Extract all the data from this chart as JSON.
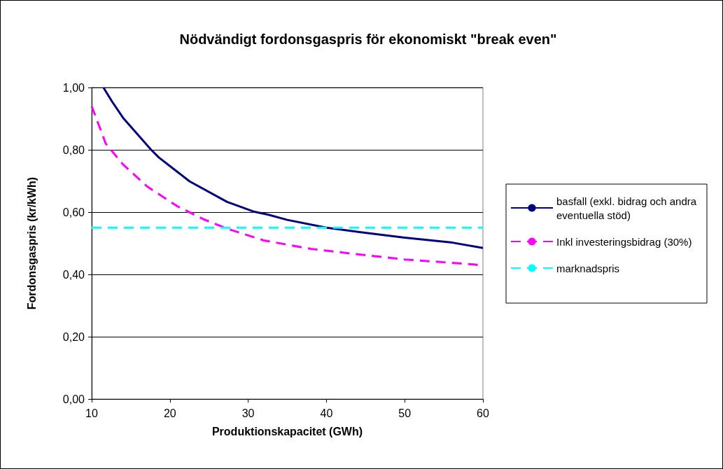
{
  "chart_data": {
    "type": "line",
    "title": "Nödvändigt fordonsgaspris för ekonomiskt \"break even\"",
    "xlabel": "Produktionskapacitet (GWh)",
    "ylabel": "Fordonsgaspris (kr/kWh)",
    "xlim": [
      10,
      60
    ],
    "xticks": [
      10,
      20,
      30,
      40,
      50,
      60
    ],
    "ylim": [
      0,
      1
    ],
    "yticks": [
      {
        "value": 0,
        "label": "0,00"
      },
      {
        "value": 0.2,
        "label": "0,20"
      },
      {
        "value": 0.4,
        "label": "0,40"
      },
      {
        "value": 0.6,
        "label": "0,60"
      },
      {
        "value": 0.8,
        "label": "0,80"
      },
      {
        "value": 1,
        "label": "1,00"
      }
    ],
    "grid": "y",
    "legend": "right",
    "marker": "none",
    "series": [
      {
        "name": "basfall (exkl. bidrag och andra eventuella stöd)",
        "color": "#000080",
        "line_style": "solid",
        "x": [
          11.5,
          12.6,
          14,
          17.6,
          18.6,
          22.5,
          27.3,
          30.8,
          32.5,
          35,
          40,
          44.2,
          50,
          56.1,
          60
        ],
        "values": [
          1.0,
          0.955,
          0.903,
          0.8,
          0.775,
          0.699,
          0.633,
          0.601,
          0.592,
          0.575,
          0.55,
          0.536,
          0.518,
          0.502,
          0.485
        ]
      },
      {
        "name": "Inkl investeringsbidrag (30%)",
        "color": "#ff00ff",
        "line_style": "dashed",
        "x": [
          10,
          11.8,
          14,
          17.1,
          21,
          24.3,
          27.3,
          32,
          38,
          44.2,
          50,
          58.8,
          60
        ],
        "values": [
          0.94,
          0.82,
          0.753,
          0.682,
          0.618,
          0.577,
          0.547,
          0.509,
          0.482,
          0.464,
          0.448,
          0.432,
          0.428
        ]
      },
      {
        "name": "marknadspris",
        "color": "#00ffff",
        "line_style": "dashed",
        "x": [
          10,
          60
        ],
        "values": [
          0.55,
          0.55
        ]
      }
    ]
  }
}
